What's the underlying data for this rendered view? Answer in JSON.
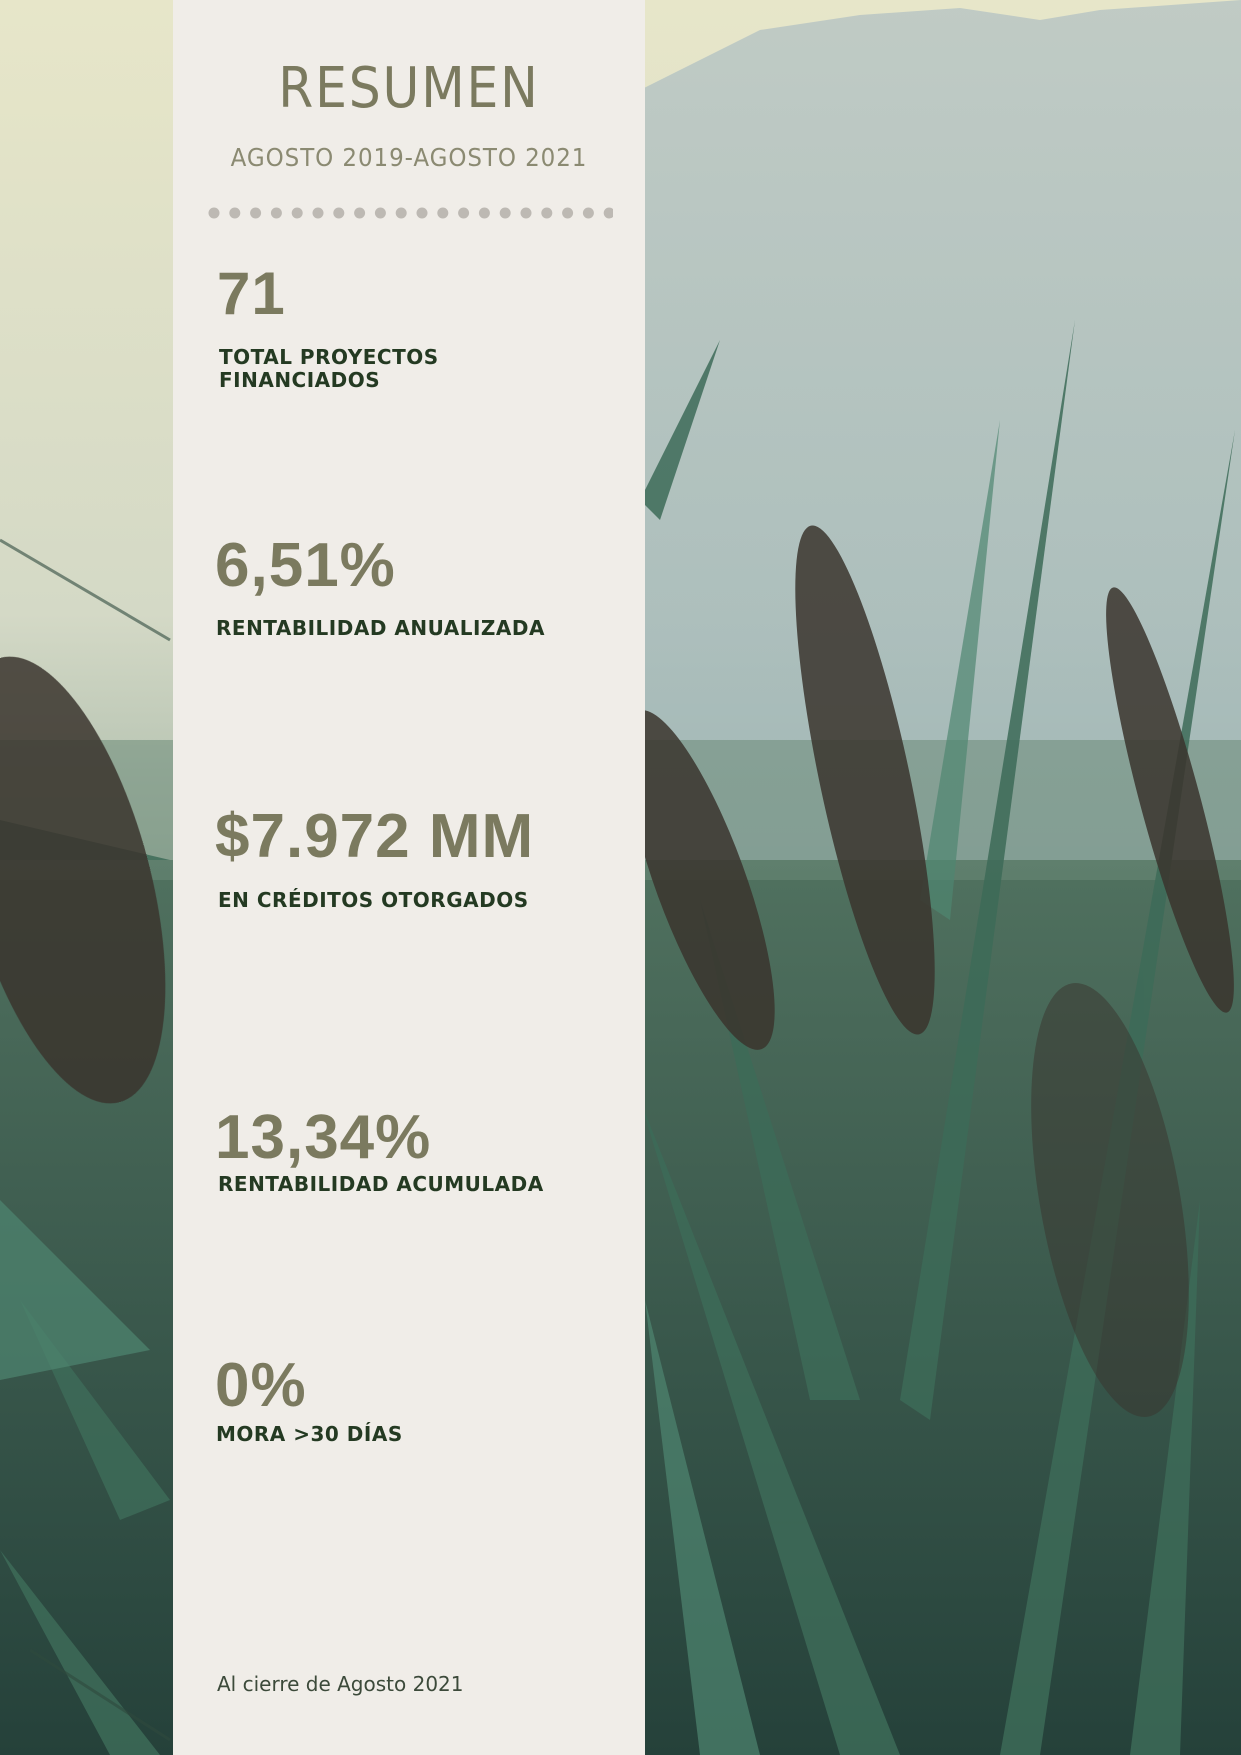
{
  "title": "RESUMEN",
  "subtitle": "AGOSTO 2019-AGOSTO 2021",
  "stats": [
    {
      "value": "71",
      "label_line1": "TOTAL PROYECTOS",
      "label_line2": "FINANCIADOS"
    },
    {
      "value": "6,51%",
      "label_line1": "RENTABILIDAD ANUALIZADA"
    },
    {
      "value": "$7.972 MM",
      "label_line1": "EN CRÉDITOS OTORGADOS"
    },
    {
      "value": "13,34%",
      "label_line1": "RENTABILIDAD ACUMULADA"
    },
    {
      "value": "0%",
      "label_line1": "MORA >30 DÍAS"
    }
  ],
  "footnote": "Al cierre de Agosto 2021",
  "colors": {
    "panel": "#f0ede8",
    "value_text": "#7b7a5f",
    "label_text": "#243a22",
    "dots": "#bdb9b3"
  }
}
